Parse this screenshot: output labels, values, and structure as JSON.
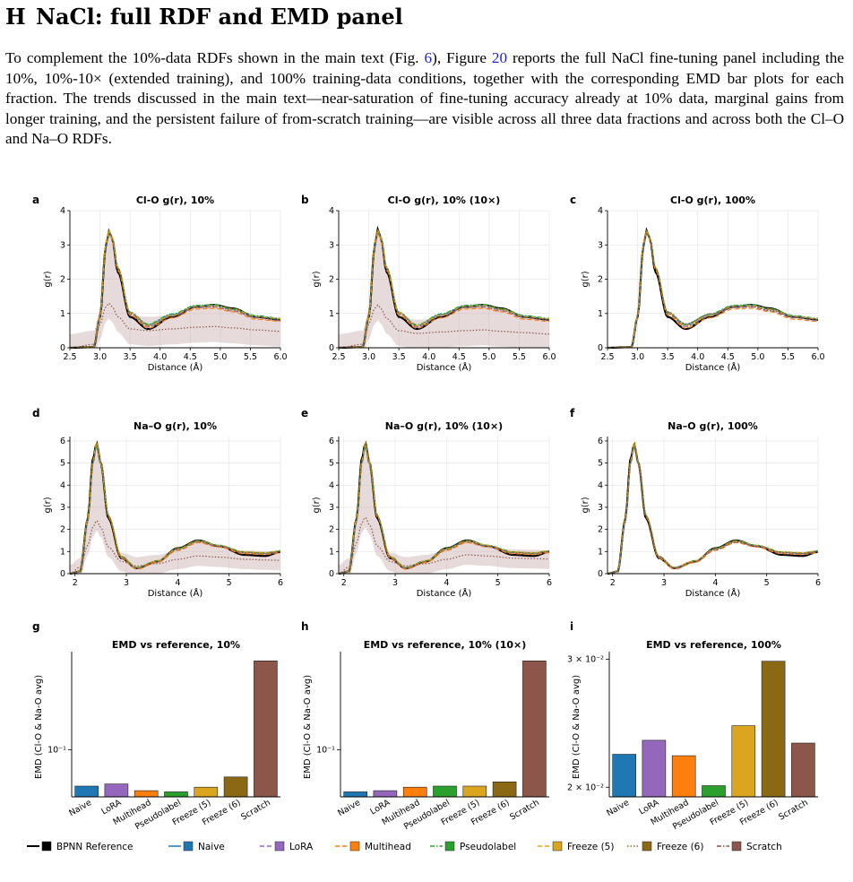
{
  "section": {
    "number": "H",
    "title": "NaCl: full RDF and EMD panel"
  },
  "paragraph": {
    "p1": "To complement the 10%-data RDFs shown in the main text (Fig. ",
    "fig_ref": "6",
    "p2": "), Figure ",
    "fig_ref2": "20",
    "p3": " reports the full NaCl fine-tuning panel including the 10%, 10%-10× (extended training), and 100% training-data conditions, together with the corresponding EMD bar plots for each fraction. The trends discussed in the main text—near-saturation of fine-tuning accuracy already at 10% data, marginal gains from longer training, and the persistent failure of from-scratch training—are visible across all three data fractions and across both the Cl–O and Na–O RDFs."
  },
  "colors": {
    "reference": "#000000",
    "Naive": "#1f77b4",
    "LoRA": "#9467bd",
    "Multihead": "#ff7f0e",
    "Pseudolabel": "#2ca02c",
    "Freeze (5)": "#dba520",
    "Freeze (6)": "#8b6914",
    "Scratch": "#8c564b",
    "scratch_band": "#c9aeae"
  },
  "chart_data": [
    {
      "panel": "a",
      "type": "line",
      "kind": "ClO",
      "title": "Cl-O g(r), 10%",
      "xlabel": "Distance (Å)",
      "ylabel": "g(r)",
      "xlim": [
        2.5,
        6.0
      ],
      "ylim": [
        0,
        4
      ],
      "xticks": [
        "2.5",
        "3.0",
        "3.5",
        "4.0",
        "4.5",
        "5.0",
        "5.5",
        "6.0"
      ],
      "yticks": [
        "0",
        "1",
        "2",
        "3",
        "4"
      ],
      "scratch_band": true,
      "x": [
        2.5,
        2.9,
        3.0,
        3.1,
        3.15,
        3.2,
        3.3,
        3.5,
        3.8,
        4.2,
        4.6,
        4.9,
        5.2,
        5.6,
        6.0
      ],
      "series": [
        {
          "name": "BPNN Reference",
          "values": [
            0,
            0.02,
            0.9,
            3.0,
            3.4,
            3.2,
            2.2,
            0.9,
            0.55,
            0.9,
            1.2,
            1.25,
            1.15,
            0.9,
            0.82
          ]
        },
        {
          "name": "Naive",
          "values": [
            0,
            0.02,
            0.9,
            3.0,
            3.38,
            3.2,
            2.3,
            1.0,
            0.65,
            0.95,
            1.2,
            1.22,
            1.1,
            0.9,
            0.82
          ]
        },
        {
          "name": "Freeze (6)",
          "values": [
            0,
            0.02,
            0.9,
            3.05,
            3.42,
            3.2,
            2.3,
            1.0,
            0.62,
            0.92,
            1.18,
            1.2,
            1.1,
            0.88,
            0.82
          ]
        },
        {
          "name": "Scratch",
          "values": [
            0,
            0.1,
            0.7,
            1.2,
            1.3,
            1.2,
            0.9,
            0.55,
            0.5,
            0.55,
            0.6,
            0.62,
            0.58,
            0.52,
            0.48
          ]
        }
      ]
    },
    {
      "panel": "b",
      "type": "line",
      "kind": "ClO",
      "title": "Cl-O g(r), 10% (10×)",
      "xlabel": "Distance (Å)",
      "ylabel": "g(r)",
      "xlim": [
        2.5,
        6.0
      ],
      "ylim": [
        0,
        4
      ],
      "xticks": [
        "2.5",
        "3.0",
        "3.5",
        "4.0",
        "4.5",
        "5.0",
        "5.5",
        "6.0"
      ],
      "yticks": [
        "0",
        "1",
        "2",
        "3",
        "4"
      ],
      "scratch_band": true,
      "x": [
        2.5,
        2.9,
        3.0,
        3.1,
        3.15,
        3.2,
        3.3,
        3.5,
        3.8,
        4.2,
        4.6,
        4.9,
        5.2,
        5.6,
        6.0
      ],
      "series": [
        {
          "name": "BPNN Reference",
          "values": [
            0,
            0.02,
            0.9,
            3.0,
            3.45,
            3.2,
            2.2,
            0.9,
            0.55,
            0.9,
            1.2,
            1.25,
            1.15,
            0.9,
            0.82
          ]
        },
        {
          "name": "Naive",
          "values": [
            0,
            0.02,
            0.9,
            3.0,
            3.38,
            3.2,
            2.3,
            1.0,
            0.63,
            0.95,
            1.2,
            1.22,
            1.1,
            0.9,
            0.82
          ]
        },
        {
          "name": "Freeze (6)",
          "values": [
            0,
            0.02,
            0.9,
            3.05,
            3.42,
            3.2,
            2.3,
            1.0,
            0.62,
            0.92,
            1.18,
            1.2,
            1.1,
            0.88,
            0.82
          ]
        },
        {
          "name": "Scratch",
          "values": [
            0,
            0.1,
            0.7,
            1.15,
            1.25,
            1.15,
            0.85,
            0.5,
            0.42,
            0.46,
            0.5,
            0.52,
            0.48,
            0.44,
            0.4
          ]
        }
      ]
    },
    {
      "panel": "c",
      "type": "line",
      "kind": "ClO",
      "title": "Cl-O g(r), 100%",
      "xlabel": "Distance (Å)",
      "ylabel": "g(r)",
      "xlim": [
        2.5,
        6.0
      ],
      "ylim": [
        0,
        4
      ],
      "xticks": [
        "2.5",
        "3.0",
        "3.5",
        "4.0",
        "4.5",
        "5.0",
        "5.5",
        "6.0"
      ],
      "yticks": [
        "0",
        "1",
        "2",
        "3",
        "4"
      ],
      "scratch_band": false,
      "x": [
        2.5,
        2.9,
        3.0,
        3.1,
        3.15,
        3.2,
        3.3,
        3.5,
        3.8,
        4.2,
        4.6,
        4.9,
        5.2,
        5.6,
        6.0
      ],
      "series": [
        {
          "name": "BPNN Reference",
          "values": [
            0,
            0.02,
            0.9,
            3.0,
            3.42,
            3.2,
            2.2,
            0.9,
            0.55,
            0.9,
            1.2,
            1.25,
            1.15,
            0.9,
            0.82
          ]
        },
        {
          "name": "Naive",
          "values": [
            0,
            0.02,
            0.9,
            3.0,
            3.38,
            3.2,
            2.3,
            1.0,
            0.65,
            0.95,
            1.2,
            1.22,
            1.1,
            0.9,
            0.82
          ]
        },
        {
          "name": "Freeze (6)",
          "values": [
            0,
            0.02,
            0.9,
            3.05,
            3.4,
            3.2,
            2.3,
            1.0,
            0.62,
            0.92,
            1.18,
            1.2,
            1.1,
            0.88,
            0.82
          ]
        },
        {
          "name": "Scratch",
          "values": [
            0,
            0.02,
            0.9,
            3.0,
            3.36,
            3.18,
            2.3,
            1.05,
            0.7,
            0.98,
            1.18,
            1.2,
            1.08,
            0.9,
            0.82
          ]
        }
      ]
    },
    {
      "panel": "d",
      "type": "line",
      "kind": "NaO",
      "title": "Na–O g(r), 10%",
      "xlabel": "Distance (Å)",
      "ylabel": "g(r)",
      "xlim": [
        1.9,
        6.0
      ],
      "ylim": [
        0,
        6.2
      ],
      "xticks": [
        "2",
        "3",
        "4",
        "5",
        "6"
      ],
      "yticks": [
        "0",
        "1",
        "2",
        "3",
        "4",
        "5",
        "6"
      ],
      "scratch_band": true,
      "x": [
        1.9,
        2.1,
        2.25,
        2.35,
        2.42,
        2.5,
        2.65,
        2.9,
        3.2,
        3.6,
        4.0,
        4.4,
        4.8,
        5.3,
        5.7,
        6.0
      ],
      "series": [
        {
          "name": "BPNN Reference",
          "values": [
            0,
            0.1,
            2.5,
            5.2,
            5.9,
            5.0,
            2.5,
            0.7,
            0.25,
            0.55,
            1.15,
            1.5,
            1.25,
            0.85,
            0.8,
            0.98
          ]
        },
        {
          "name": "Naive",
          "values": [
            0,
            0.1,
            2.4,
            5.0,
            5.8,
            5.0,
            2.6,
            0.75,
            0.25,
            0.55,
            1.1,
            1.45,
            1.25,
            0.95,
            0.9,
            1.0
          ]
        },
        {
          "name": "Freeze (6)",
          "values": [
            0,
            0.1,
            2.5,
            5.1,
            5.95,
            5.0,
            2.6,
            0.75,
            0.25,
            0.55,
            1.1,
            1.45,
            1.25,
            0.95,
            0.92,
            1.0
          ]
        },
        {
          "name": "Scratch",
          "values": [
            0,
            0.3,
            1.3,
            2.1,
            2.4,
            2.1,
            1.2,
            0.55,
            0.35,
            0.45,
            0.65,
            0.8,
            0.75,
            0.65,
            0.62,
            0.6
          ]
        }
      ]
    },
    {
      "panel": "e",
      "type": "line",
      "kind": "NaO",
      "title": "Na–O g(r), 10% (10×)",
      "xlabel": "Distance (Å)",
      "ylabel": "g(r)",
      "xlim": [
        1.9,
        6.0
      ],
      "ylim": [
        0,
        6.2
      ],
      "xticks": [
        "2",
        "3",
        "4",
        "5",
        "6"
      ],
      "yticks": [
        "0",
        "1",
        "2",
        "3",
        "4",
        "5",
        "6"
      ],
      "scratch_band": true,
      "x": [
        1.9,
        2.1,
        2.25,
        2.35,
        2.42,
        2.5,
        2.65,
        2.9,
        3.2,
        3.6,
        4.0,
        4.4,
        4.8,
        5.3,
        5.7,
        6.0
      ],
      "series": [
        {
          "name": "BPNN Reference",
          "values": [
            0,
            0.1,
            2.5,
            5.2,
            5.9,
            5.0,
            2.5,
            0.7,
            0.25,
            0.55,
            1.15,
            1.5,
            1.25,
            0.85,
            0.8,
            0.98
          ]
        },
        {
          "name": "Naive",
          "values": [
            0,
            0.1,
            2.4,
            5.0,
            5.75,
            5.0,
            2.6,
            0.75,
            0.25,
            0.55,
            1.1,
            1.45,
            1.25,
            0.95,
            0.9,
            1.0
          ]
        },
        {
          "name": "Freeze (6)",
          "values": [
            0,
            0.1,
            2.5,
            5.1,
            5.9,
            5.0,
            2.6,
            0.75,
            0.25,
            0.55,
            1.1,
            1.45,
            1.25,
            0.95,
            0.92,
            1.0
          ]
        },
        {
          "name": "Scratch",
          "values": [
            0,
            0.3,
            1.4,
            2.3,
            2.55,
            2.2,
            1.25,
            0.55,
            0.35,
            0.45,
            0.65,
            0.85,
            0.8,
            0.7,
            0.68,
            0.66
          ]
        }
      ]
    },
    {
      "panel": "f",
      "type": "line",
      "kind": "NaO",
      "title": "Na–O g(r), 100%",
      "xlabel": "Distance (Å)",
      "ylabel": "g(r)",
      "xlim": [
        1.9,
        6.0
      ],
      "ylim": [
        0,
        6.2
      ],
      "xticks": [
        "2",
        "3",
        "4",
        "5",
        "6"
      ],
      "yticks": [
        "0",
        "1",
        "2",
        "3",
        "4",
        "5",
        "6"
      ],
      "scratch_band": false,
      "x": [
        1.9,
        2.1,
        2.25,
        2.35,
        2.42,
        2.5,
        2.65,
        2.9,
        3.2,
        3.6,
        4.0,
        4.4,
        4.8,
        5.3,
        5.7,
        6.0
      ],
      "series": [
        {
          "name": "BPNN Reference",
          "values": [
            0,
            0.1,
            2.5,
            5.2,
            5.85,
            5.0,
            2.5,
            0.7,
            0.25,
            0.55,
            1.15,
            1.5,
            1.25,
            0.85,
            0.8,
            0.98
          ]
        },
        {
          "name": "Naive",
          "values": [
            0,
            0.1,
            2.4,
            5.0,
            5.8,
            5.0,
            2.6,
            0.75,
            0.25,
            0.55,
            1.1,
            1.45,
            1.25,
            0.95,
            0.9,
            1.0
          ]
        },
        {
          "name": "Freeze (6)",
          "values": [
            0,
            0.1,
            2.5,
            5.1,
            5.95,
            5.0,
            2.6,
            0.75,
            0.25,
            0.55,
            1.1,
            1.45,
            1.25,
            0.95,
            0.92,
            1.0
          ]
        },
        {
          "name": "Scratch",
          "values": [
            0,
            0.1,
            2.4,
            5.0,
            5.75,
            4.95,
            2.6,
            0.78,
            0.27,
            0.55,
            1.1,
            1.42,
            1.25,
            0.95,
            0.9,
            1.0
          ]
        }
      ]
    },
    {
      "panel": "g",
      "type": "bar",
      "title": "EMD vs reference, 10%",
      "ylabel": "EMD (Cl-O & Na-O avg)",
      "yscale": "log",
      "ylim": [
        0.045,
        0.48
      ],
      "ytick_label": "10⁻¹",
      "ytick_value": 0.1,
      "categories": [
        "Naive",
        "LoRA",
        "Multihead",
        "Pseudolabel",
        "Freeze (5)",
        "Freeze (6)",
        "Scratch"
      ],
      "values": [
        0.054,
        0.056,
        0.05,
        0.049,
        0.053,
        0.063,
        0.45
      ]
    },
    {
      "panel": "h",
      "type": "bar",
      "title": "EMD vs reference, 10% (10×)",
      "ylabel": "EMD (Cl-O & Na-O avg)",
      "yscale": "log",
      "ylim": [
        0.045,
        0.48
      ],
      "ytick_label": "10⁻¹",
      "ytick_value": 0.1,
      "categories": [
        "Naive",
        "LoRA",
        "Multihead",
        "Pseudolabel",
        "Freeze (5)",
        "Freeze (6)",
        "Scratch"
      ],
      "values": [
        0.049,
        0.05,
        0.053,
        0.054,
        0.054,
        0.058,
        0.45
      ]
    },
    {
      "panel": "i",
      "type": "bar",
      "title": "EMD vs reference, 100%",
      "ylabel": "EMD (Cl-O & Na-O avg)",
      "yscale": "log",
      "ylim": [
        0.0194,
        0.0302
      ],
      "yticks_label": [
        "2 × 10⁻²",
        "3 × 10⁻²"
      ],
      "yticks_value": [
        0.02,
        0.03
      ],
      "categories": [
        "Naive",
        "LoRA",
        "Multihead",
        "Pseudolabel",
        "Freeze (5)",
        "Freeze (6)",
        "Scratch"
      ],
      "values": [
        0.0222,
        0.0232,
        0.0221,
        0.0201,
        0.0243,
        0.0298,
        0.023
      ]
    }
  ],
  "legend": [
    {
      "label": "BPNN Reference",
      "color": "#000000",
      "dash": ""
    },
    {
      "label": "Naive",
      "color": "#1f77b4",
      "dash": ""
    },
    {
      "label": "LoRA",
      "color": "#9467bd",
      "dash": "5,3"
    },
    {
      "label": "Multihead",
      "color": "#ff7f0e",
      "dash": "5,3"
    },
    {
      "label": "Pseudolabel",
      "color": "#2ca02c",
      "dash": "5,2,1.5,2"
    },
    {
      "label": "Freeze (5)",
      "color": "#dba520",
      "dash": "5,3"
    },
    {
      "label": "Freeze (6)",
      "color": "#8b6914",
      "dash": "1.5,2"
    },
    {
      "label": "Scratch",
      "color": "#8c564b",
      "dash": "5,2,1.5,2"
    }
  ]
}
